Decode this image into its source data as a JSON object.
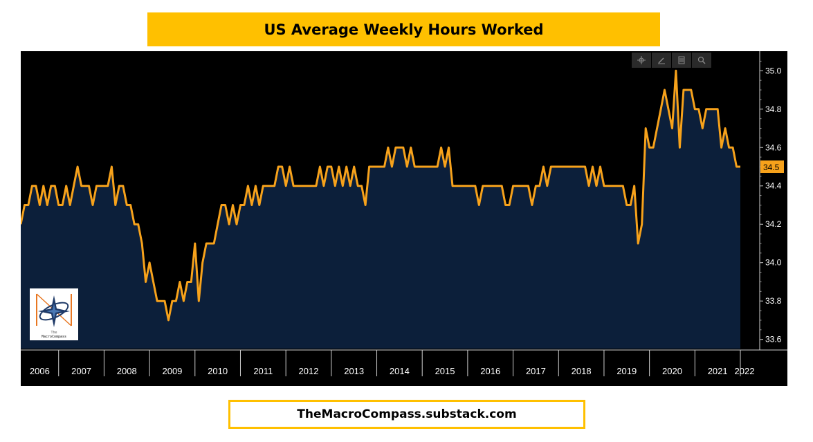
{
  "title": "US Average Weekly Hours Worked",
  "footer": "TheMacroCompass.substack.com",
  "toolbar": {
    "icons": [
      "crosshair-icon",
      "pencil-icon",
      "list-icon",
      "search-icon"
    ]
  },
  "logo": {
    "line1": "The",
    "line2": "MacroCompass"
  },
  "colors": {
    "title_bg": "#FFC000",
    "line": "#F7A21B",
    "fill": "#0C1F3A",
    "panel_bg": "#000000",
    "axis_text": "#FFFFFF",
    "last_label_bg": "#F7A21B"
  },
  "chart_data": {
    "type": "area",
    "title": "US Average Weekly Hours Worked",
    "x_label": "",
    "y_label": "",
    "x_start": "2006-03",
    "frequency": "monthly",
    "x_ticks": [
      "2006",
      "2007",
      "2008",
      "2009",
      "2010",
      "2011",
      "2012",
      "2013",
      "2014",
      "2015",
      "2016",
      "2017",
      "2018",
      "2019",
      "2020",
      "2021",
      "2022"
    ],
    "y_ticks": [
      "33.6",
      "33.8",
      "34.0",
      "34.2",
      "34.4",
      "34.6",
      "34.8",
      "35.0"
    ],
    "ylim": [
      33.57,
      35.12
    ],
    "y_axis_side": "right",
    "last_value_label": "34.5",
    "values": [
      34.2,
      34.3,
      34.3,
      34.4,
      34.4,
      34.3,
      34.4,
      34.3,
      34.4,
      34.4,
      34.3,
      34.3,
      34.4,
      34.3,
      34.4,
      34.5,
      34.4,
      34.4,
      34.4,
      34.3,
      34.4,
      34.4,
      34.4,
      34.4,
      34.5,
      34.3,
      34.4,
      34.4,
      34.3,
      34.3,
      34.2,
      34.2,
      34.1,
      33.9,
      34.0,
      33.9,
      33.8,
      33.8,
      33.8,
      33.7,
      33.8,
      33.8,
      33.9,
      33.8,
      33.9,
      33.9,
      34.1,
      33.8,
      34.0,
      34.1,
      34.1,
      34.1,
      34.2,
      34.3,
      34.3,
      34.2,
      34.3,
      34.2,
      34.3,
      34.3,
      34.4,
      34.3,
      34.4,
      34.3,
      34.4,
      34.4,
      34.4,
      34.4,
      34.5,
      34.5,
      34.4,
      34.5,
      34.4,
      34.4,
      34.4,
      34.4,
      34.4,
      34.4,
      34.4,
      34.5,
      34.4,
      34.5,
      34.5,
      34.4,
      34.5,
      34.4,
      34.5,
      34.4,
      34.5,
      34.4,
      34.4,
      34.3,
      34.5,
      34.5,
      34.5,
      34.5,
      34.5,
      34.6,
      34.5,
      34.6,
      34.6,
      34.6,
      34.5,
      34.6,
      34.5,
      34.5,
      34.5,
      34.5,
      34.5,
      34.5,
      34.5,
      34.6,
      34.5,
      34.6,
      34.4,
      34.4,
      34.4,
      34.4,
      34.4,
      34.4,
      34.4,
      34.3,
      34.4,
      34.4,
      34.4,
      34.4,
      34.4,
      34.4,
      34.3,
      34.3,
      34.4,
      34.4,
      34.4,
      34.4,
      34.4,
      34.3,
      34.4,
      34.4,
      34.5,
      34.4,
      34.5,
      34.5,
      34.5,
      34.5,
      34.5,
      34.5,
      34.5,
      34.5,
      34.5,
      34.5,
      34.4,
      34.5,
      34.4,
      34.5,
      34.4,
      34.4,
      34.4,
      34.4,
      34.4,
      34.4,
      34.3,
      34.3,
      34.4,
      34.1,
      34.2,
      34.7,
      34.6,
      34.6,
      34.7,
      34.8,
      34.9,
      34.8,
      34.7,
      35.0,
      34.6,
      34.9,
      34.9,
      34.9,
      34.8,
      34.8,
      34.7,
      34.8,
      34.8,
      34.8,
      34.8,
      34.6,
      34.7,
      34.6,
      34.6,
      34.5,
      34.5
    ]
  }
}
